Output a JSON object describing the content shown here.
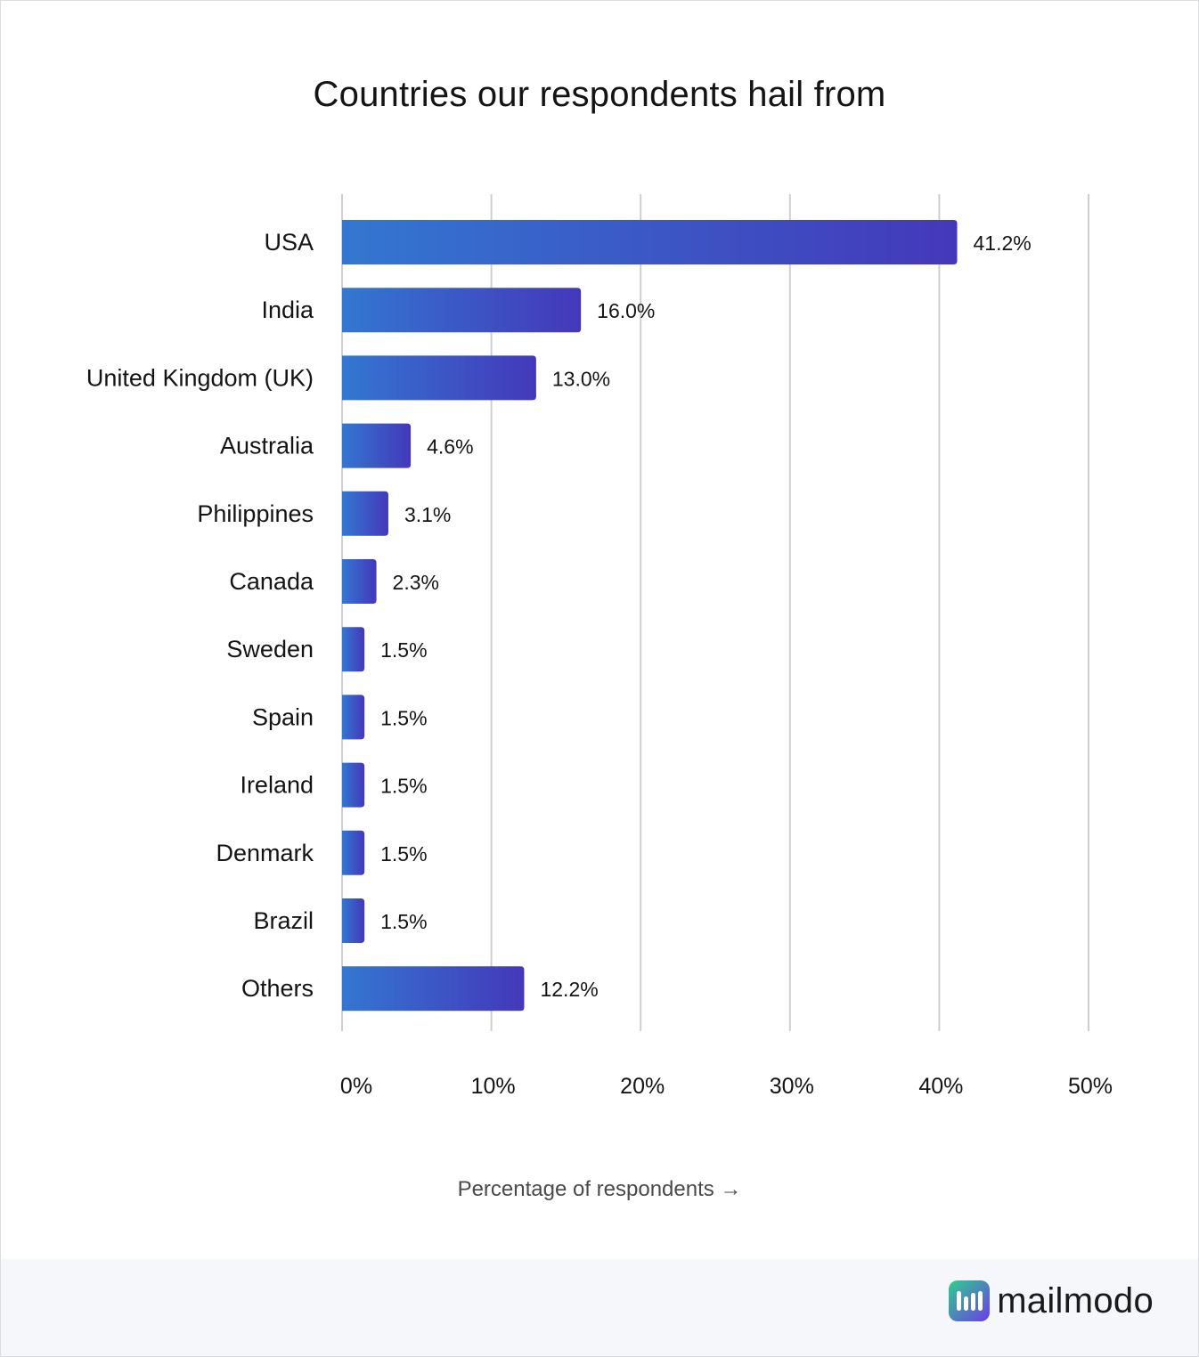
{
  "brand": {
    "name": "mailmodo",
    "logo_icon": "mailmodo-logo-icon"
  },
  "colors": {
    "bar_start": "#3377d1",
    "bar_end": "#4438ba",
    "grid": "#cfcfcf",
    "text": "#141414",
    "footer_bg": "#f6f7fb"
  },
  "chart_data": {
    "type": "bar",
    "orientation": "horizontal",
    "title": "Countries our respondents hail from",
    "xlabel": "Percentage of respondents →",
    "ylabel": "",
    "xlim": [
      0,
      50
    ],
    "grid": true,
    "x_ticks": [
      0,
      10,
      20,
      30,
      40,
      50
    ],
    "x_tick_labels": [
      "0%",
      "10%",
      "20%",
      "30%",
      "40%",
      "50%"
    ],
    "categories": [
      "USA",
      "India",
      "United Kingdom (UK)",
      "Australia",
      "Philippines",
      "Canada",
      "Sweden",
      "Spain",
      "Ireland",
      "Denmark",
      "Brazil",
      "Others"
    ],
    "values": [
      41.2,
      16.0,
      13.0,
      4.6,
      3.1,
      2.3,
      1.5,
      1.5,
      1.5,
      1.5,
      1.5,
      12.2
    ],
    "value_labels": [
      "41.2%",
      "16.0%",
      "13.0%",
      "4.6%",
      "3.1%",
      "2.3%",
      "1.5%",
      "1.5%",
      "1.5%",
      "1.5%",
      "1.5%",
      "12.2%"
    ]
  }
}
